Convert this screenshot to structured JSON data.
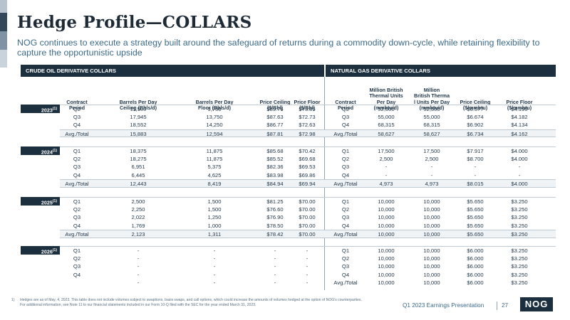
{
  "title": "Hedge Profile—COLLARS",
  "subtitle": "NOG continues to execute a strategy built around the safeguard of returns during a commodity down-cycle, while retaining flexibility to capture the opportunistic upside",
  "sections": {
    "crude": "CRUDE OIL DERIVATIVE COLLARS",
    "gas": "NATURAL GAS DERIVATIVE COLLARS"
  },
  "columns": {
    "oil": [
      "Contract\nPeriod",
      "Barrels Per Day\nCeiling (Bbls/d)",
      "Barrels Per Day\nFloor (Bbls/d)",
      "Price Ceiling\n($/Bbl)",
      "Price Floor\n($/Bbl)"
    ],
    "gas": [
      "Contract\nPeriod",
      "Million British\nThermal Units\nPer Day\n(mmbtu/d)",
      "Million\nBritish Therma\nl Units Per Day\n(mmbtu/d)",
      "Price Ceiling\n($/mmbtu)",
      "Price Floor\n($/mmbtu)"
    ]
  },
  "groups": [
    {
      "year": "2023",
      "footnote_mark": "(1)",
      "rows": [
        {
          "oil": [
            "Q2",
            "11,500",
            "9,750",
            "$89.76",
            "$73.85"
          ],
          "gas": [
            "Q2",
            "52,500",
            "52,500",
            "$6.577",
            "$4.190"
          ]
        },
        {
          "oil": [
            "Q3",
            "17,945",
            "13,750",
            "$87.63",
            "$72.73"
          ],
          "gas": [
            "Q3",
            "55,000",
            "55,000",
            "$6.674",
            "$4.182"
          ]
        },
        {
          "oil": [
            "Q4",
            "18,552",
            "14,250",
            "$86.77",
            "$72.63"
          ],
          "gas": [
            "Q4",
            "68,315",
            "68,315",
            "$6.902",
            "$4.134"
          ]
        },
        {
          "total": true,
          "oil": [
            "Avg./Total",
            "15,883",
            "12,594",
            "$87.81",
            "$72.98"
          ],
          "gas": [
            "Avg./Total",
            "58,627",
            "58,627",
            "$6.734",
            "$4.162"
          ]
        }
      ]
    },
    {
      "year": "2024",
      "footnote_mark": "(1)",
      "rows": [
        {
          "oil": [
            "Q1",
            "18,375",
            "11,875",
            "$85.68",
            "$70.42"
          ],
          "gas": [
            "Q1",
            "17,500",
            "17,500",
            "$7.917",
            "$4.000"
          ]
        },
        {
          "oil": [
            "Q2",
            "18,275",
            "11,875",
            "$85.52",
            "$69.68"
          ],
          "gas": [
            "Q2",
            "2,500",
            "2,500",
            "$8.700",
            "$4.000"
          ]
        },
        {
          "oil": [
            "Q3",
            "6,951",
            "5,375",
            "$82.36",
            "$69.53"
          ],
          "gas": [
            "Q3",
            "-",
            "-",
            "-",
            "-"
          ]
        },
        {
          "oil": [
            "Q4",
            "6,445",
            "4,625",
            "$83.98",
            "$69.86"
          ],
          "gas": [
            "Q4",
            "-",
            "-",
            "-",
            "-"
          ]
        },
        {
          "total": true,
          "oil": [
            "Avg./Total",
            "12,443",
            "8,419",
            "$84.94",
            "$69.94"
          ],
          "gas": [
            "Avg./Total",
            "4,973",
            "4,973",
            "$8.015",
            "$4.000"
          ]
        }
      ]
    },
    {
      "year": "2025",
      "footnote_mark": "(1)",
      "rows": [
        {
          "oil": [
            "Q1",
            "2,500",
            "1,500",
            "$81.25",
            "$70.00"
          ],
          "gas": [
            "Q1",
            "10,000",
            "10,000",
            "$5.650",
            "$3.250"
          ]
        },
        {
          "oil": [
            "Q2",
            "2,250",
            "1,500",
            "$76.60",
            "$70.00"
          ],
          "gas": [
            "Q2",
            "10,000",
            "10,000",
            "$5.650",
            "$3.250"
          ]
        },
        {
          "oil": [
            "Q3",
            "2,022",
            "1,250",
            "$76.90",
            "$70.00"
          ],
          "gas": [
            "Q3",
            "10,000",
            "10,000",
            "$5.650",
            "$3.250"
          ]
        },
        {
          "oil": [
            "Q4",
            "1,769",
            "1,000",
            "$78.50",
            "$70.00"
          ],
          "gas": [
            "Q4",
            "10,000",
            "10,000",
            "$5.650",
            "$3.250"
          ]
        },
        {
          "total": true,
          "oil": [
            "Avg./Total",
            "2,123",
            "1,311",
            "$78.42",
            "$70.00"
          ],
          "gas": [
            "Avg./Total",
            "10,000",
            "10,000",
            "$5.650",
            "$3.250"
          ]
        }
      ]
    },
    {
      "year": "2026",
      "footnote_mark": "(1)",
      "rows": [
        {
          "oil": [
            "Q1",
            "-",
            "-",
            "-",
            "-"
          ],
          "gas": [
            "Q1",
            "10,000",
            "10,000",
            "$6.000",
            "$3.250"
          ]
        },
        {
          "oil": [
            "Q2",
            "-",
            "-",
            "-",
            "-"
          ],
          "gas": [
            "Q2",
            "10,000",
            "10,000",
            "$6.000",
            "$3.250"
          ]
        },
        {
          "oil": [
            "Q3",
            "-",
            "-",
            "-",
            "-"
          ],
          "gas": [
            "Q3",
            "10,000",
            "10,000",
            "$6.000",
            "$3.250"
          ]
        },
        {
          "oil": [
            "Q4",
            "-",
            "-",
            "-",
            "-"
          ],
          "gas": [
            "Q4",
            "10,000",
            "10,000",
            "$6.000",
            "$3.250"
          ]
        },
        {
          "oil": [
            "",
            "-",
            "-",
            "-",
            "-"
          ],
          "gas": [
            "Avg./Total",
            "10,000",
            "10,000",
            "$6.000",
            "$3.250"
          ]
        }
      ]
    }
  ],
  "footnote": {
    "number": "1)",
    "line1": "Hedges are as of May, 4, 2023. This table does not include volumes subject to swaptions, basis swaps, and call options, which could increase the amounts of volumes hedged at the option of NOG's counterparties.",
    "line2": "For additional information, see Note 11 to our financial statements included in our Form 10-Q filed with the SEC for the year ended March 31, 2023."
  },
  "footer": {
    "presentation": "Q1 2023 Earnings Presentation",
    "page": "27",
    "logo": "NOG"
  }
}
